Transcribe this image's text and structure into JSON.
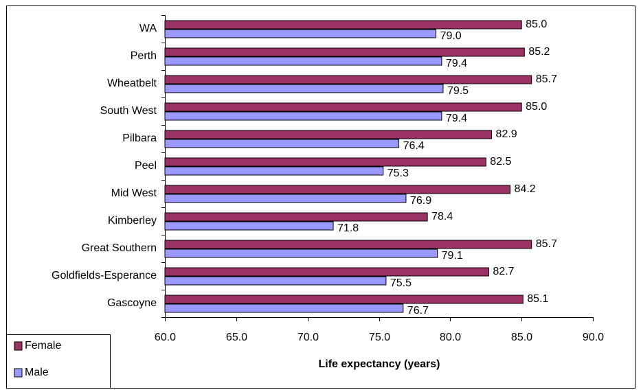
{
  "chart_data": {
    "type": "bar",
    "orientation": "horizontal",
    "x_label": "Life expectancy (years)",
    "categories": [
      "WA",
      "Perth",
      "Wheatbelt",
      "South West",
      "Pilbara",
      "Peel",
      "Mid West",
      "Kimberley",
      "Great Southern",
      "Goldfields-Esperance",
      "Gascoyne"
    ],
    "series": [
      {
        "name": "Female",
        "color": "#993366",
        "values": [
          85.0,
          85.2,
          85.7,
          85.0,
          82.9,
          82.5,
          84.2,
          78.4,
          85.7,
          82.7,
          85.1
        ],
        "value_labels": [
          "85.0",
          "85.2",
          "85.7",
          "85.0",
          "82.9",
          "82.5",
          "84.2",
          "78.4",
          "85.7",
          "82.7",
          "85.1"
        ]
      },
      {
        "name": "Male",
        "color": "#9999ff",
        "values": [
          79.0,
          79.4,
          79.5,
          79.4,
          76.4,
          75.3,
          76.9,
          71.8,
          79.1,
          75.5,
          76.7
        ],
        "value_labels": [
          "79.0",
          "79.4",
          "79.5",
          "79.4",
          "76.4",
          "75.3",
          "76.9",
          "71.8",
          "79.1",
          "75.5",
          "76.7"
        ]
      }
    ],
    "xlim": [
      60,
      90
    ],
    "xticks": [
      {
        "value": 60,
        "label": "60.0"
      },
      {
        "value": 65,
        "label": "65.0"
      },
      {
        "value": 70,
        "label": "70.0"
      },
      {
        "value": 75,
        "label": "75.0"
      },
      {
        "value": 80,
        "label": "80.0"
      },
      {
        "value": 85,
        "label": "85.0"
      },
      {
        "value": 90,
        "label": "90.0"
      }
    ],
    "legend": "bottom-left",
    "grid": false
  }
}
